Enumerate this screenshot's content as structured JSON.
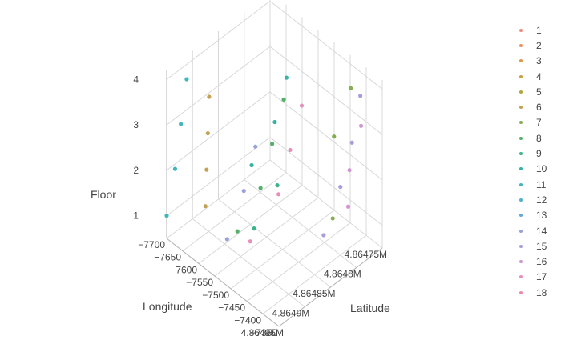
{
  "chart_data": {
    "type": "scatter",
    "dimensions": 3,
    "xlabel": "Longitude",
    "ylabel": "Latitude",
    "zlabel": "Floor",
    "xlim": [
      -7700,
      -7350
    ],
    "ylim": [
      4864750,
      4864950
    ],
    "zlim": [
      0.5,
      4.2
    ],
    "x_ticks": [
      "−7700",
      "−7650",
      "−7600",
      "−7550",
      "−7500",
      "−7450",
      "−7400",
      "−7350"
    ],
    "y_ticks": [
      "4.86475M",
      "4.8648M",
      "4.86485M",
      "4.8649M",
      "4.86495M"
    ],
    "z_ticks": [
      "1",
      "2",
      "3",
      "4"
    ],
    "legend": {
      "position": "right",
      "entries": [
        "1",
        "2",
        "3",
        "4",
        "5",
        "6",
        "7",
        "8",
        "9",
        "10",
        "11",
        "12",
        "13",
        "14",
        "15",
        "16",
        "17",
        "18"
      ]
    },
    "series": [
      {
        "name": "1",
        "color": "#f08c7d",
        "points": []
      },
      {
        "name": "2",
        "color": "#e9925f",
        "points": []
      },
      {
        "name": "3",
        "color": "#dc9a4a",
        "points": []
      },
      {
        "name": "4",
        "color": "#c9a13c",
        "points": []
      },
      {
        "name": "5",
        "color": "#b2a73e",
        "points": []
      },
      {
        "name": "6",
        "color": "#c4a155",
        "points": [
          [
            -7660,
            4864900,
            1
          ],
          [
            -7640,
            4864910,
            2
          ],
          [
            -7620,
            4864920,
            3
          ],
          [
            -7600,
            4864930,
            4
          ]
        ]
      },
      {
        "name": "7",
        "color": "#85ad52",
        "points": [
          [
            -7440,
            4864790,
            1
          ],
          [
            -7420,
            4864800,
            3
          ],
          [
            -7400,
            4864780,
            4
          ]
        ]
      },
      {
        "name": "8",
        "color": "#55b06b",
        "points": [
          [
            -7560,
            4864900,
            1
          ],
          [
            -7520,
            4864880,
            2
          ],
          [
            -7500,
            4864870,
            3
          ],
          [
            -7480,
            4864860,
            4
          ]
        ]
      },
      {
        "name": "9",
        "color": "#3cb48c",
        "points": [
          [
            -7540,
            4864880,
            1
          ],
          [
            -7500,
            4864860,
            2
          ]
        ]
      },
      {
        "name": "10",
        "color": "#34b4a6",
        "points": [
          [
            -7580,
            4864860,
            2
          ],
          [
            -7540,
            4864840,
            3
          ],
          [
            -7520,
            4864830,
            4
          ]
        ]
      },
      {
        "name": "11",
        "color": "#41b6bd",
        "points": [
          [
            -7700,
            4864950,
            1
          ],
          [
            -7690,
            4864940,
            2
          ],
          [
            -7680,
            4864935,
            3
          ],
          [
            -7670,
            4864930,
            4
          ]
        ]
      },
      {
        "name": "12",
        "color": "#4cb2cf",
        "points": []
      },
      {
        "name": "13",
        "color": "#62a9da",
        "points": []
      },
      {
        "name": "14",
        "color": "#98a2db",
        "points": [
          [
            -7560,
            4864920,
            1
          ],
          [
            -7540,
            4864900,
            2
          ],
          [
            -7520,
            4864890,
            3
          ]
        ]
      },
      {
        "name": "15",
        "color": "#a99cdc",
        "points": [
          [
            -7420,
            4864820,
            1
          ],
          [
            -7400,
            4864800,
            2
          ],
          [
            -7380,
            4864790,
            3
          ],
          [
            -7370,
            4864780,
            4
          ]
        ]
      },
      {
        "name": "16",
        "color": "#cf95d2",
        "points": [
          [
            -7440,
            4864760,
            1
          ],
          [
            -7420,
            4864770,
            2
          ],
          [
            -7400,
            4864760,
            3
          ]
        ]
      },
      {
        "name": "17",
        "color": "#e68fbd",
        "points": [
          [
            -7520,
            4864900,
            1
          ],
          [
            -7480,
            4864870,
            2
          ],
          [
            -7460,
            4864860,
            3
          ],
          [
            -7440,
            4864850,
            4
          ]
        ]
      },
      {
        "name": "18",
        "color": "#ef8aa6",
        "points": []
      }
    ]
  }
}
